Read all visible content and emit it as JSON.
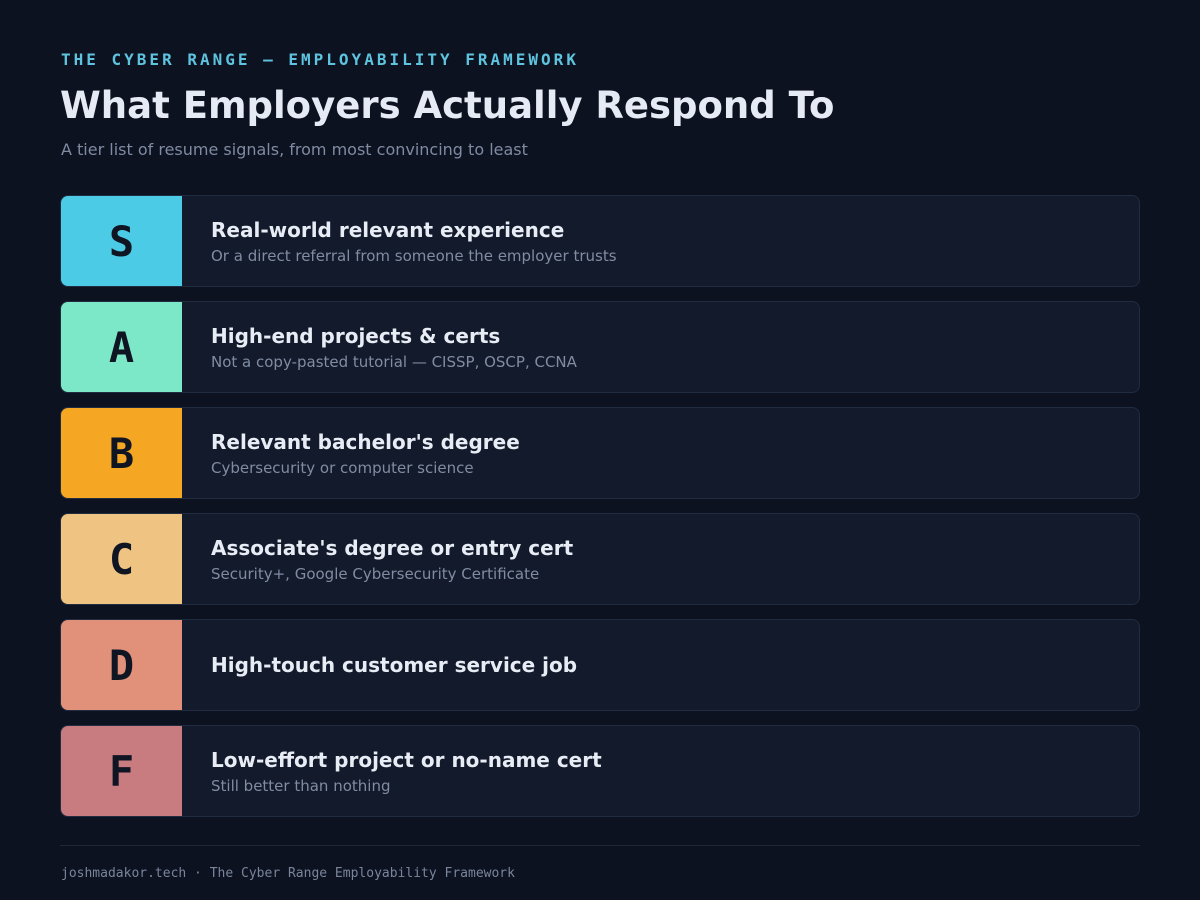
{
  "header": {
    "eyebrow": "THE CYBER RANGE — EMPLOYABILITY FRAMEWORK",
    "title": "What Employers Actually Respond To",
    "subtitle": "A tier list of resume signals, from most convincing to least"
  },
  "tiers": [
    {
      "grade": "S",
      "color": "#4ccbe6",
      "heading": "Real-world relevant experience",
      "description": "Or a direct referral from someone the employer trusts"
    },
    {
      "grade": "A",
      "color": "#7de8c7",
      "heading": "High-end projects & certs",
      "description": "Not a copy-pasted tutorial — CISSP, OSCP, CCNA"
    },
    {
      "grade": "B",
      "color": "#f5a623",
      "heading": "Relevant bachelor's degree",
      "description": "Cybersecurity or computer science"
    },
    {
      "grade": "C",
      "color": "#efc483",
      "heading": "Associate's degree or entry cert",
      "description": "Security+, Google Cybersecurity Certificate"
    },
    {
      "grade": "D",
      "color": "#e1917a",
      "heading": "High-touch customer service job",
      "description": ""
    },
    {
      "grade": "F",
      "color": "#c87c80",
      "heading": "Low-effort project or no-name cert",
      "description": "Still better than nothing"
    }
  ],
  "footer": {
    "text": "joshmadakor.tech · The Cyber Range Employability Framework"
  }
}
